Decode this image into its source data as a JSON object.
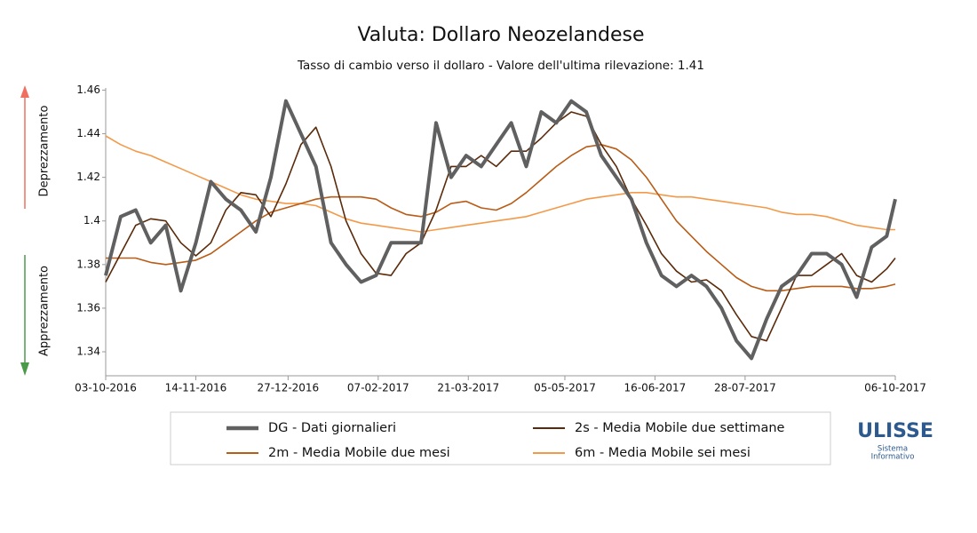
{
  "chart_data": {
    "type": "line",
    "title": "Valuta: Dollaro Neozelandese",
    "subtitle": "Tasso di cambio verso il dollaro - Valore dell'ultima rilevazione: 1.41",
    "annotations": [
      "Deprezzamento",
      "Apprezzamento"
    ],
    "x": [
      "03-10-2016",
      "10-10-2016",
      "17-10-2016",
      "24-10-2016",
      "31-10-2016",
      "07-11-2016",
      "14-11-2016",
      "21-11-2016",
      "28-11-2016",
      "05-12-2016",
      "12-12-2016",
      "19-12-2016",
      "26-12-2016",
      "02-01-2017",
      "09-01-2017",
      "16-01-2017",
      "23-01-2017",
      "30-01-2017",
      "06-02-2017",
      "13-02-2017",
      "20-02-2017",
      "27-02-2017",
      "06-03-2017",
      "13-03-2017",
      "20-03-2017",
      "27-03-2017",
      "03-04-2017",
      "10-04-2017",
      "17-04-2017",
      "24-04-2017",
      "01-05-2017",
      "08-05-2017",
      "15-05-2017",
      "22-05-2017",
      "29-05-2017",
      "05-06-2017",
      "12-06-2017",
      "19-06-2017",
      "26-06-2017",
      "03-07-2017",
      "10-07-2017",
      "17-07-2017",
      "24-07-2017",
      "31-07-2017",
      "07-08-2017",
      "14-08-2017",
      "21-08-2017",
      "28-08-2017",
      "04-09-2017",
      "11-09-2017",
      "18-09-2017",
      "25-09-2017",
      "02-10-2017",
      "06-10-2017"
    ],
    "series": [
      {
        "name": "DG - Dati giornalieri",
        "color": "#606060",
        "width": 4,
        "values": [
          1.375,
          1.402,
          1.405,
          1.39,
          1.398,
          1.368,
          1.39,
          1.418,
          1.41,
          1.405,
          1.395,
          1.42,
          1.455,
          1.44,
          1.425,
          1.39,
          1.38,
          1.372,
          1.375,
          1.39,
          1.39,
          1.39,
          1.445,
          1.42,
          1.43,
          1.425,
          1.435,
          1.445,
          1.425,
          1.45,
          1.445,
          1.455,
          1.45,
          1.43,
          1.42,
          1.41,
          1.39,
          1.375,
          1.37,
          1.375,
          1.37,
          1.36,
          1.345,
          1.337,
          1.355,
          1.37,
          1.375,
          1.385,
          1.385,
          1.38,
          1.365,
          1.388,
          1.393,
          1.41
        ]
      },
      {
        "name": "2s - Media Mobile due settimane",
        "color": "#5a2a0a",
        "width": 1.6,
        "values": [
          1.372,
          1.385,
          1.398,
          1.401,
          1.4,
          1.39,
          1.384,
          1.39,
          1.405,
          1.413,
          1.412,
          1.402,
          1.417,
          1.435,
          1.443,
          1.425,
          1.4,
          1.385,
          1.376,
          1.375,
          1.385,
          1.39,
          1.405,
          1.425,
          1.425,
          1.43,
          1.425,
          1.432,
          1.432,
          1.438,
          1.445,
          1.45,
          1.448,
          1.435,
          1.425,
          1.41,
          1.398,
          1.385,
          1.377,
          1.372,
          1.373,
          1.368,
          1.357,
          1.347,
          1.345,
          1.36,
          1.375,
          1.375,
          1.38,
          1.385,
          1.375,
          1.372,
          1.378,
          1.383
        ]
      },
      {
        "name": "2m - Media Mobile due mesi",
        "color": "#b85c17",
        "width": 1.6,
        "values": [
          1.383,
          1.383,
          1.383,
          1.381,
          1.38,
          1.381,
          1.382,
          1.385,
          1.39,
          1.395,
          1.4,
          1.404,
          1.406,
          1.408,
          1.41,
          1.411,
          1.411,
          1.411,
          1.41,
          1.406,
          1.403,
          1.402,
          1.404,
          1.408,
          1.409,
          1.406,
          1.405,
          1.408,
          1.413,
          1.419,
          1.425,
          1.43,
          1.434,
          1.435,
          1.433,
          1.428,
          1.42,
          1.41,
          1.4,
          1.393,
          1.386,
          1.38,
          1.374,
          1.37,
          1.368,
          1.368,
          1.369,
          1.37,
          1.37,
          1.37,
          1.369,
          1.369,
          1.37,
          1.371
        ]
      },
      {
        "name": "6m - Media Mobile sei mesi",
        "color": "#f39a4a",
        "width": 1.6,
        "values": [
          1.439,
          1.435,
          1.432,
          1.43,
          1.427,
          1.424,
          1.421,
          1.418,
          1.415,
          1.412,
          1.41,
          1.409,
          1.408,
          1.408,
          1.407,
          1.404,
          1.401,
          1.399,
          1.398,
          1.397,
          1.396,
          1.395,
          1.396,
          1.397,
          1.398,
          1.399,
          1.4,
          1.401,
          1.402,
          1.404,
          1.406,
          1.408,
          1.41,
          1.411,
          1.412,
          1.413,
          1.413,
          1.412,
          1.411,
          1.411,
          1.41,
          1.409,
          1.408,
          1.407,
          1.406,
          1.404,
          1.403,
          1.403,
          1.402,
          1.4,
          1.398,
          1.397,
          1.396,
          1.396
        ]
      }
    ],
    "xticks": [
      "03-10-2016",
      "14-11-2016",
      "27-12-2016",
      "07-02-2017",
      "21-03-2017",
      "05-05-2017",
      "16-06-2017",
      "28-07-2017",
      "06-10-2017"
    ],
    "ylim": [
      1.329,
      1.461
    ],
    "yticks": [
      1.34,
      1.36,
      1.38,
      1.4,
      1.42,
      1.44,
      1.46
    ]
  },
  "logo": {
    "title": "ULISSE",
    "line1": "Sistema",
    "line2": "Informativo"
  }
}
